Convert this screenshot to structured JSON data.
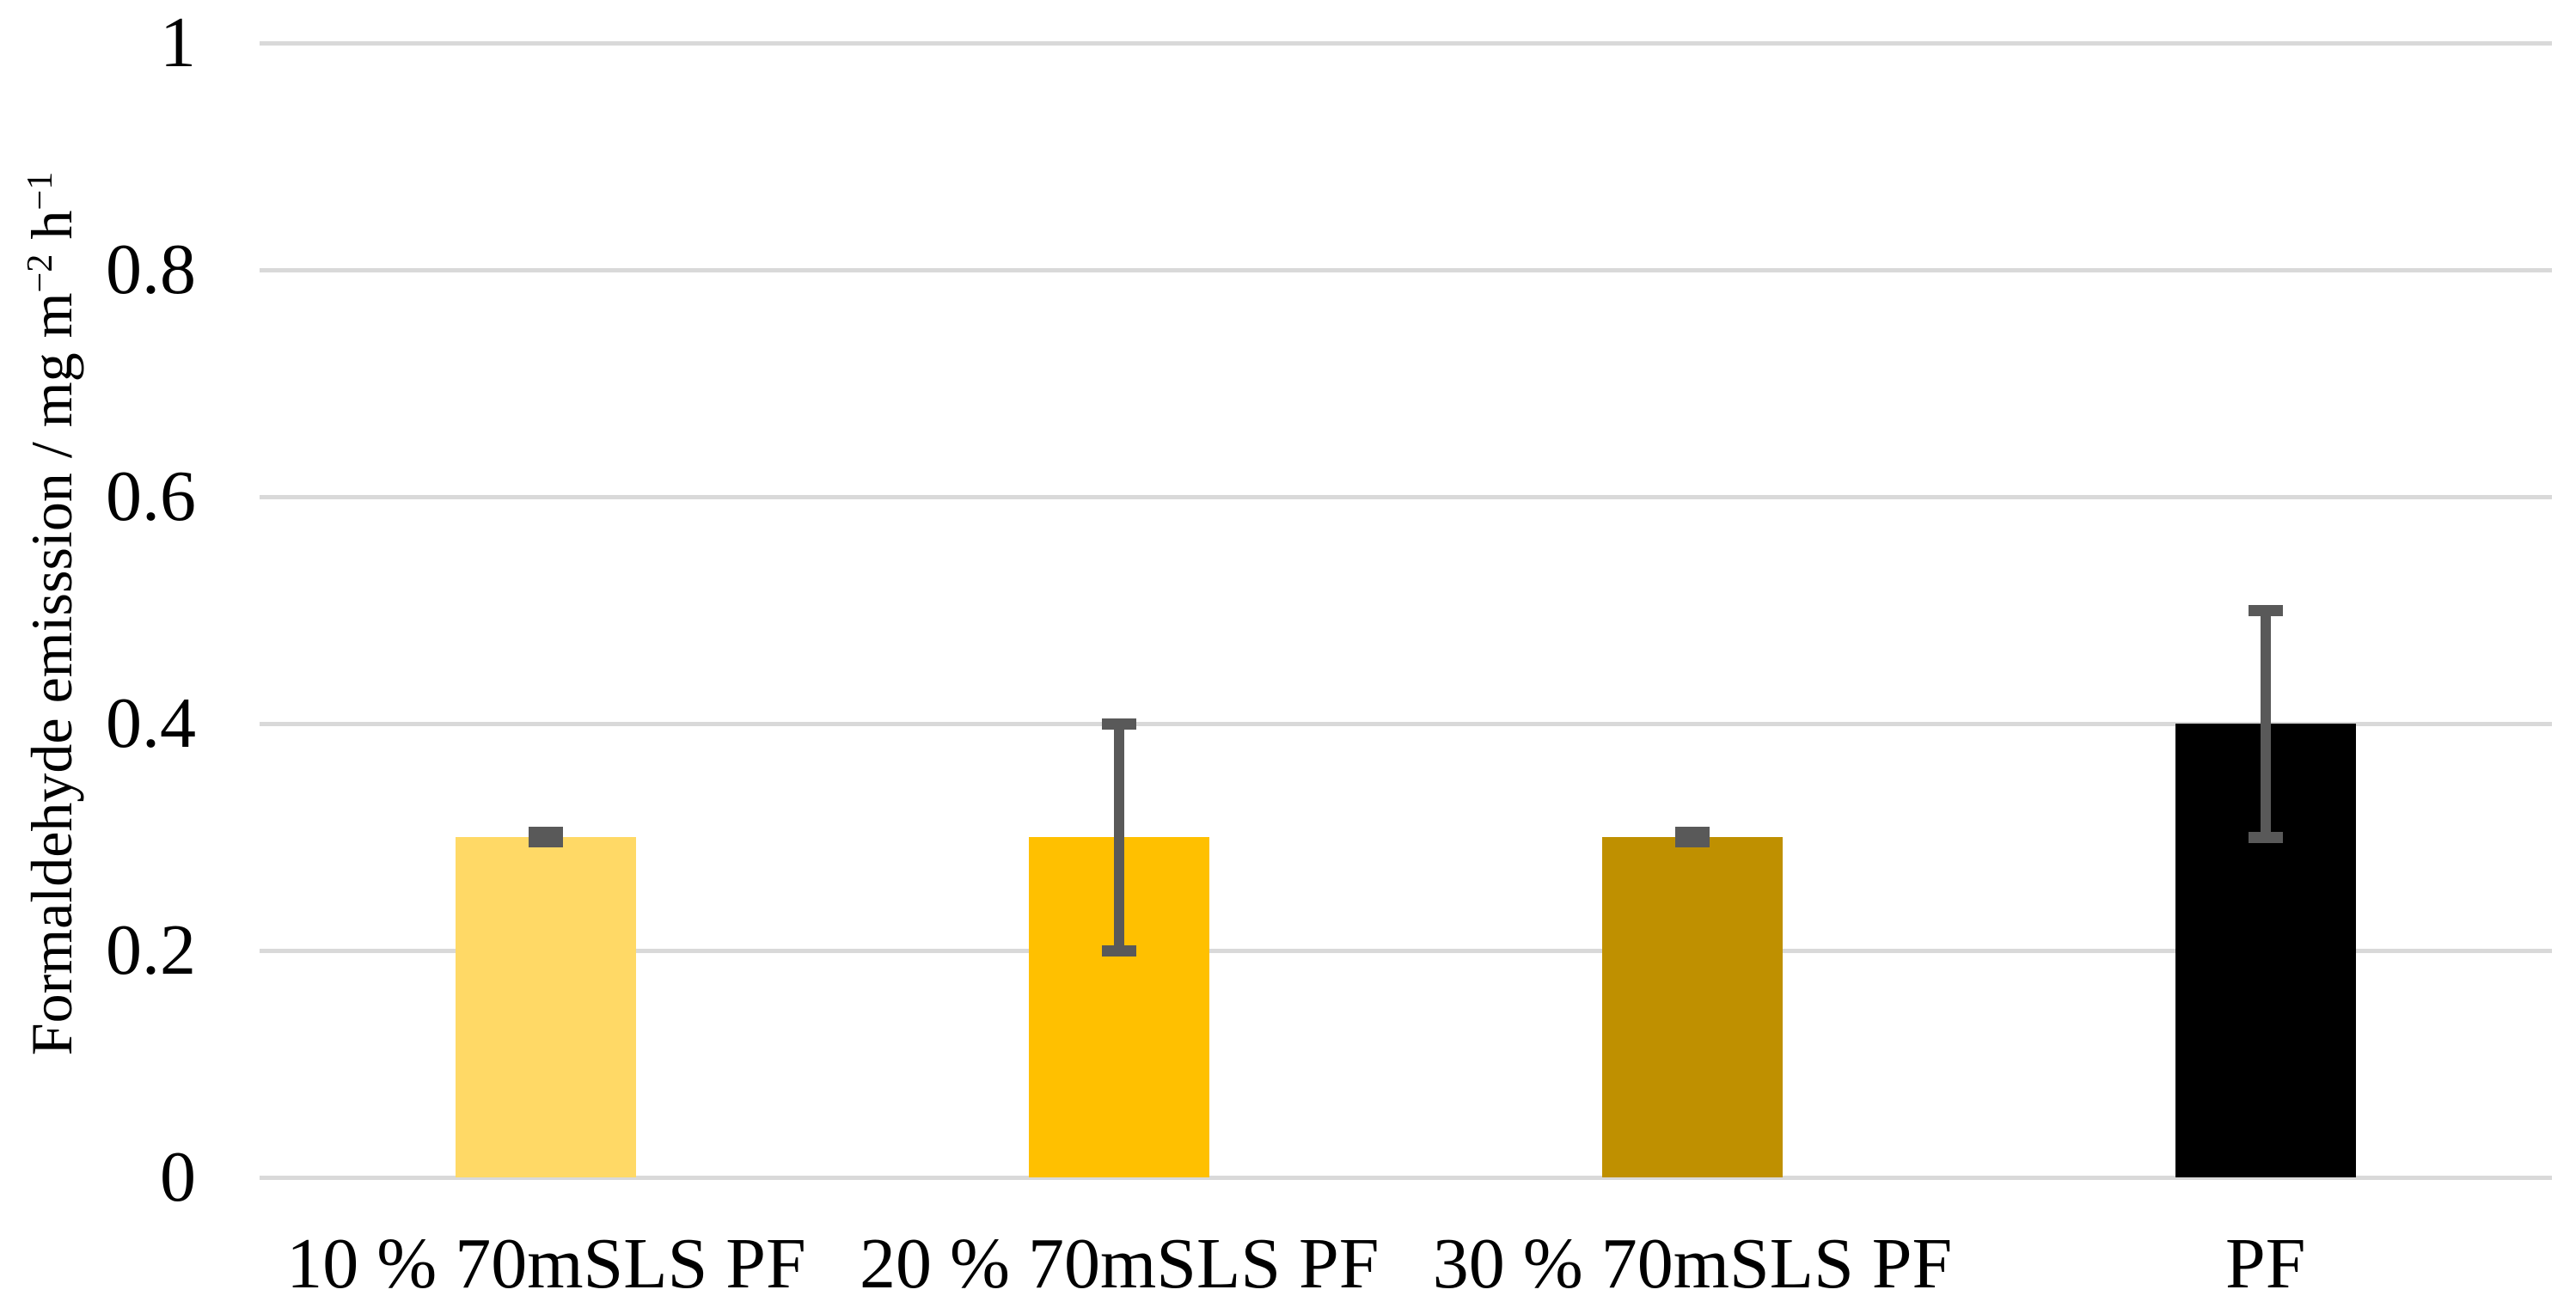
{
  "chart_data": {
    "type": "bar",
    "title": "",
    "categories": [
      "10 % 70mSLS PF",
      "20 % 70mSLS PF",
      "30 % 70mSLS PF",
      "PF"
    ],
    "values": [
      0.3,
      0.3,
      0.3,
      0.4
    ],
    "series": [
      {
        "name": "Formaldehyde emission",
        "values": [
          0.3,
          0.3,
          0.3,
          0.4
        ],
        "error_plus": [
          0.004,
          0.1,
          0.004,
          0.1
        ],
        "error_minus": [
          0.004,
          0.1,
          0.004,
          0.1
        ]
      }
    ],
    "bar_colors": [
      "#FFD966",
      "#FFC000",
      "#BF9000",
      "#000000"
    ],
    "ylabel": "Formaldehyde emisssion / mg m−2 h−1",
    "ylabel_segments": [
      {
        "text": "Formaldehyde emisssion / mg m",
        "sup": false
      },
      {
        "text": "−2",
        "sup": true
      },
      {
        "text": " h",
        "sup": false
      },
      {
        "text": "−1",
        "sup": true
      }
    ],
    "xlabel": "",
    "ylim": [
      0,
      1
    ],
    "yticks": [
      0,
      0.2,
      0.4,
      0.6,
      0.8,
      1
    ],
    "ytick_labels": [
      "0",
      "0.2",
      "0.4",
      "0.6",
      "0.8",
      "1"
    ],
    "grid": "horizontal",
    "legend": "none",
    "colors": {
      "gridline": "#D9D9D9",
      "error_bar": "#595959",
      "text": "#000000",
      "background": "#FFFFFF"
    }
  }
}
